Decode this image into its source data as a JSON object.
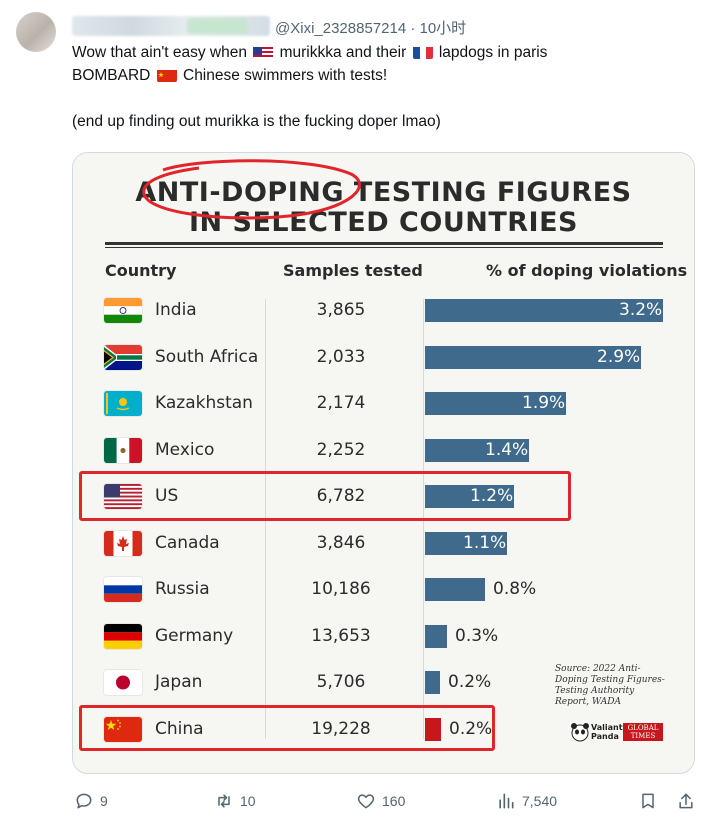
{
  "tweet": {
    "handle": "@Xixi_2328857214 · 10小时",
    "line1_a": "Wow that ain't easy when ",
    "line1_b": " murikkka and their ",
    "line1_c": " lapdogs in paris",
    "line2_a": "BOMBARD ",
    "line2_b": " Chinese swimmers with tests!",
    "line4": "(end up finding out murikka is the fucking doper lmao)",
    "inline_flags": [
      "us-flag-icon",
      "france-flag-icon",
      "china-flag-icon"
    ]
  },
  "infographic": {
    "title_line1": "ANTI-DOPING TESTING FIGURES",
    "title_line2": "IN SELECTED COUNTRIES",
    "col_country": "Country",
    "col_samples": "Samples tested",
    "col_violations": "% of doping violations",
    "bar_color": "#3f6a8c",
    "china_bar_color": "#c8161d",
    "rows": [
      {
        "country": "India",
        "samples": "3,865",
        "pct_label": "3.2%"
      },
      {
        "country": "South Africa",
        "samples": "2,033",
        "pct_label": "2.9%"
      },
      {
        "country": "Kazakhstan",
        "samples": "2,174",
        "pct_label": "1.9%"
      },
      {
        "country": "Mexico",
        "samples": "2,252",
        "pct_label": "1.4%"
      },
      {
        "country": "US",
        "samples": "6,782",
        "pct_label": "1.2%"
      },
      {
        "country": "Canada",
        "samples": "3,846",
        "pct_label": "1.1%"
      },
      {
        "country": "Russia",
        "samples": "10,186",
        "pct_label": "0.8%"
      },
      {
        "country": "Germany",
        "samples": "13,653",
        "pct_label": "0.3%"
      },
      {
        "country": "Japan",
        "samples": "5,706",
        "pct_label": "0.2%"
      },
      {
        "country": "China",
        "samples": "19,228",
        "pct_label": "0.2%"
      }
    ],
    "source_text": "Source: 2022 Anti-Doping Testing Figures-Testing Authority Report, WADA",
    "logo_panda_1": "Valiant",
    "logo_panda_2": "Panda",
    "logo_gt_1": "GLOBAL",
    "logo_gt_2": "TIMES",
    "annotation_color": "#e2252b"
  },
  "chart_data": {
    "type": "bar",
    "title": "ANTI-DOPING TESTING FIGURES IN SELECTED COUNTRIES",
    "categories": [
      "India",
      "South Africa",
      "Kazakhstan",
      "Mexico",
      "US",
      "Canada",
      "Russia",
      "Germany",
      "Japan",
      "China"
    ],
    "series": [
      {
        "name": "% of doping violations",
        "values": [
          3.2,
          2.9,
          1.9,
          1.4,
          1.2,
          1.1,
          0.8,
          0.3,
          0.2,
          0.2
        ]
      },
      {
        "name": "Samples tested",
        "values": [
          3865,
          2033,
          2174,
          2252,
          6782,
          3846,
          10186,
          13653,
          5706,
          19228
        ]
      }
    ],
    "orientation": "horizontal",
    "xlim": [
      0,
      3.2
    ]
  },
  "actions": {
    "replies": "9",
    "retweets": "10",
    "likes": "160",
    "views": "7,540"
  }
}
